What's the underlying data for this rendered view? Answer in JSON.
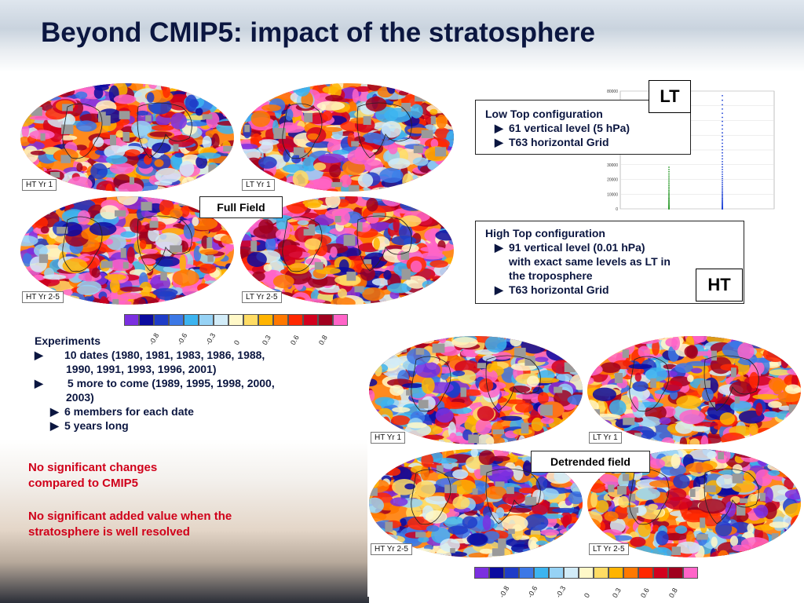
{
  "title": "Beyond CMIP5: impact of the stratosphere",
  "top_maps": {
    "labels": [
      "HT Yr 1",
      "LT Yr 1",
      "HT Yr 2-5",
      "LT Yr 2-5"
    ],
    "field_label": "Full Field"
  },
  "bottom_maps": {
    "labels": [
      "HT Yr 1",
      "LT Yr 1",
      "HT Yr 2-5",
      "LT Yr 2-5"
    ],
    "field_label": "Detrended field"
  },
  "colorbar": {
    "colors": [
      "#7b2fe0",
      "#0a0aa0",
      "#1e3cc8",
      "#3c78e6",
      "#3cb4f0",
      "#96d2f5",
      "#d2ecf8",
      "#fff8c8",
      "#ffdc64",
      "#ffb400",
      "#ff7800",
      "#ff2800",
      "#d2001e",
      "#a0001e",
      "#ff64c8"
    ],
    "ticks": [
      "-0.8",
      "-0.6",
      "-0.3",
      "0",
      "0.3",
      "0.6",
      "0.8"
    ]
  },
  "lt_config": {
    "tag": "LT",
    "heading": "Low Top configuration",
    "items": [
      "61 vertical level (5 hPa)",
      "T63 horizontal Grid"
    ]
  },
  "ht_config": {
    "tag": "HT",
    "heading": "High Top configuration",
    "items": [
      "91 vertical level (0.01 hPa)",
      "with exact same levels as LT in",
      "the troposphere",
      "T63 horizontal Grid"
    ]
  },
  "level_plot": {
    "yticks": [
      "80000",
      "70000",
      "60000",
      "50000",
      "40000",
      "30000",
      "20000",
      "10000",
      "0"
    ],
    "series_colors": [
      "#2a9a2a",
      "#1a3fd6"
    ]
  },
  "experiments": {
    "heading": "Experiments",
    "items": [
      "10 dates (1980, 1981, 1983, 1986, 1988, 1990, 1991, 1993, 1996, 2001)",
      " 5 more to come (1989, 1995, 1998, 2000, 2003)",
      "6 members for each date",
      "5 years long"
    ]
  },
  "conclusions": [
    "No significant changes compared to CMIP5",
    "No significant added value when the stratosphere is well resolved"
  ]
}
